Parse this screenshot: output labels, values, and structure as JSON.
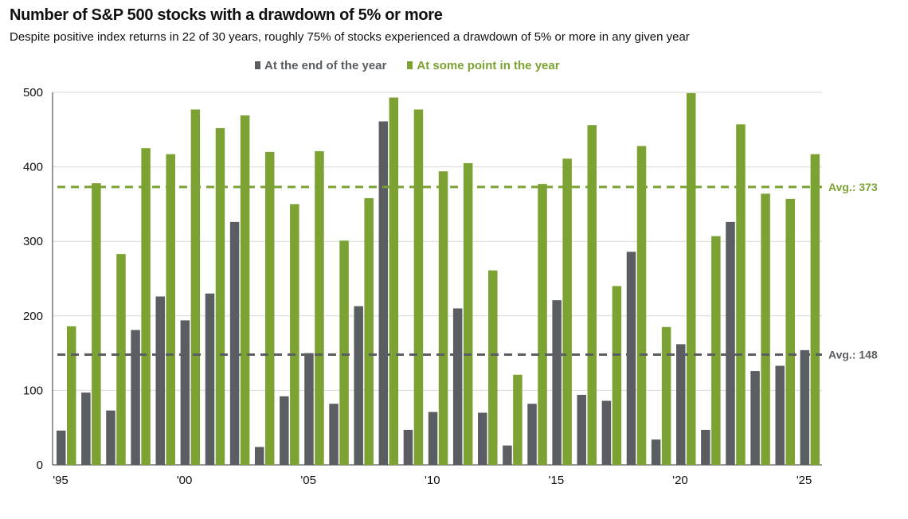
{
  "chart_data": {
    "type": "bar",
    "title": "Number of S&P 500 stocks with a drawdown of 5%  or more",
    "subtitle": "Despite positive index returns in 22 of 30 years, roughly 75% of stocks experienced a drawdown of 5% or more in any given year",
    "categories": [
      1995,
      1996,
      1997,
      1998,
      1999,
      2000,
      2001,
      2002,
      2003,
      2004,
      2005,
      2006,
      2007,
      2008,
      2009,
      2010,
      2011,
      2012,
      2013,
      2014,
      2015,
      2016,
      2017,
      2018,
      2019,
      2020,
      2021,
      2022,
      2023,
      2024,
      2025
    ],
    "x_tick_labels": [
      {
        "year": 1995,
        "label": "'95"
      },
      {
        "year": 2000,
        "label": "'00"
      },
      {
        "year": 2005,
        "label": "'05"
      },
      {
        "year": 2010,
        "label": "'10"
      },
      {
        "year": 2015,
        "label": "'15"
      },
      {
        "year": 2020,
        "label": "'20"
      },
      {
        "year": 2025,
        "label": "'25"
      }
    ],
    "series": [
      {
        "name": "At the end of the year",
        "color": "#5a5e63",
        "values": [
          46,
          97,
          73,
          181,
          226,
          194,
          230,
          326,
          24,
          92,
          150,
          82,
          213,
          461,
          47,
          71,
          210,
          70,
          26,
          82,
          221,
          94,
          86,
          286,
          34,
          162,
          47,
          326,
          126,
          133,
          154
        ]
      },
      {
        "name": "At some point in the year",
        "color": "#7ba232",
        "values": [
          186,
          378,
          283,
          425,
          417,
          477,
          452,
          469,
          420,
          350,
          421,
          301,
          358,
          493,
          477,
          394,
          405,
          261,
          121,
          377,
          411,
          456,
          240,
          428,
          185,
          499,
          307,
          457,
          364,
          357,
          417
        ]
      }
    ],
    "averages": [
      {
        "label": "Avg.: 373",
        "value": 373,
        "color": "#7ba232"
      },
      {
        "label": "Avg.: 148",
        "value": 148,
        "color": "#5a5e63"
      }
    ],
    "ylim": [
      0,
      500
    ],
    "y_ticks": [
      0,
      100,
      200,
      300,
      400,
      500
    ],
    "grid": true,
    "legend_placement": "top-center"
  }
}
